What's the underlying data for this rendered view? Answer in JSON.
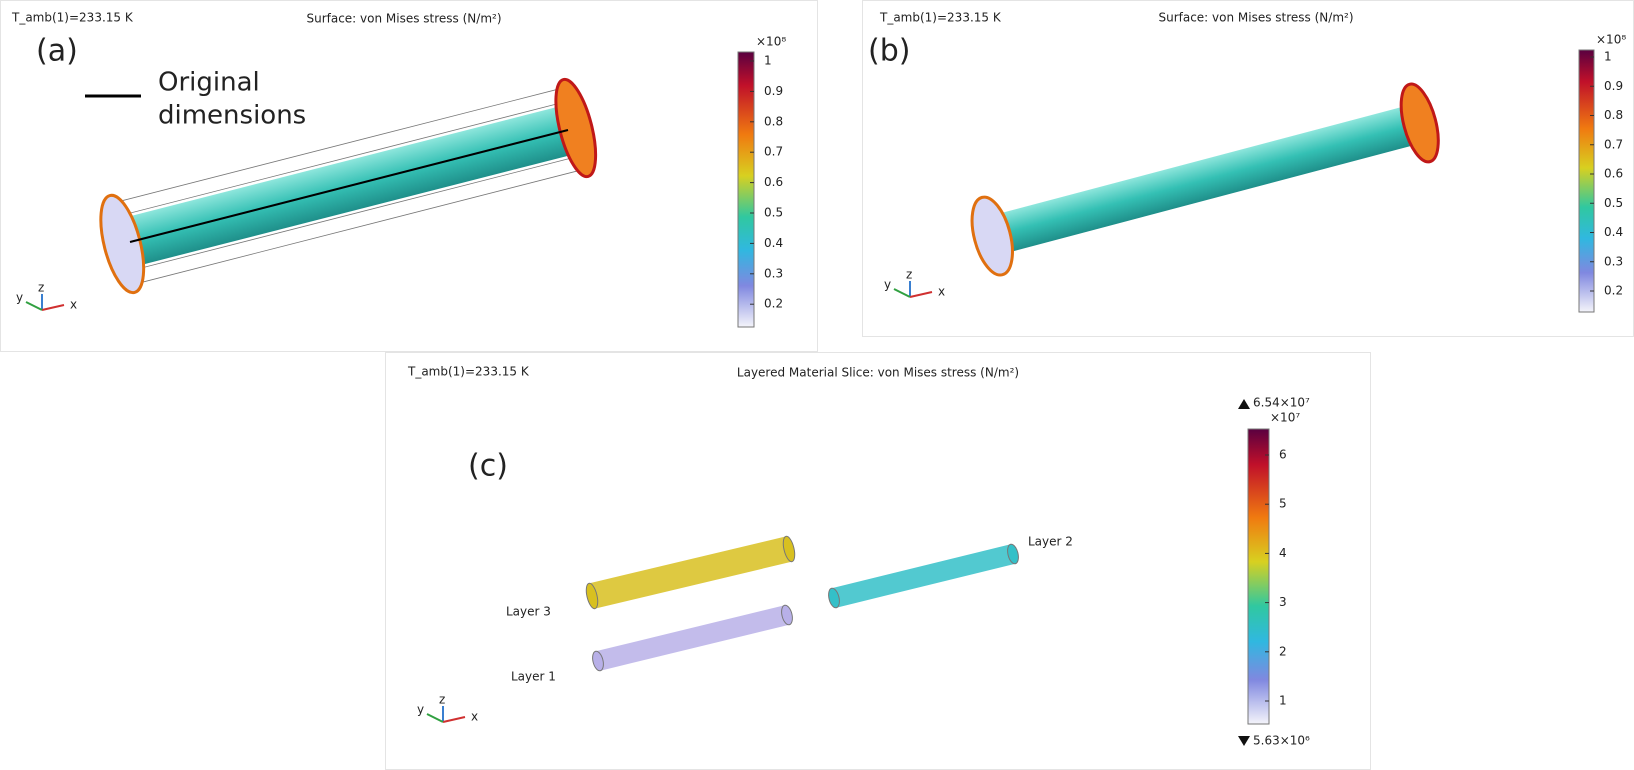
{
  "panels": [
    {
      "label": "(a)",
      "parameter": "T_amb(1)=233.15 K",
      "title": "Surface: von Mises stress (N/m²)",
      "legend": [
        "Original",
        "dimensions"
      ],
      "colorbar": {
        "exponent": "×10⁸",
        "ticks": [
          "1",
          "0.9",
          "0.8",
          "0.7",
          "0.6",
          "0.5",
          "0.4",
          "0.3",
          "0.2"
        ]
      },
      "axes": [
        "y",
        "z",
        "x"
      ]
    },
    {
      "label": "(b)",
      "parameter": "T_amb(1)=233.15 K",
      "title": "Surface: von Mises stress (N/m²)",
      "colorbar": {
        "exponent": "×10⁸",
        "ticks": [
          "1",
          "0.9",
          "0.8",
          "0.7",
          "0.6",
          "0.5",
          "0.4",
          "0.3",
          "0.2"
        ]
      },
      "axes": [
        "y",
        "z",
        "x"
      ]
    },
    {
      "label": "(c)",
      "parameter": "T_amb(1)=233.15 K",
      "title": "Layered Material Slice: von Mises stress (N/m²)",
      "colorbar": {
        "exponent": "×10⁷",
        "max": "6.54×10⁷",
        "min": "5.63×10⁶",
        "ticks": [
          "6",
          "5",
          "4",
          "3",
          "2",
          "1"
        ]
      },
      "layers": [
        "Layer 2",
        "Layer 3",
        "Layer 1"
      ],
      "axes": [
        "y",
        "z",
        "x"
      ]
    }
  ]
}
